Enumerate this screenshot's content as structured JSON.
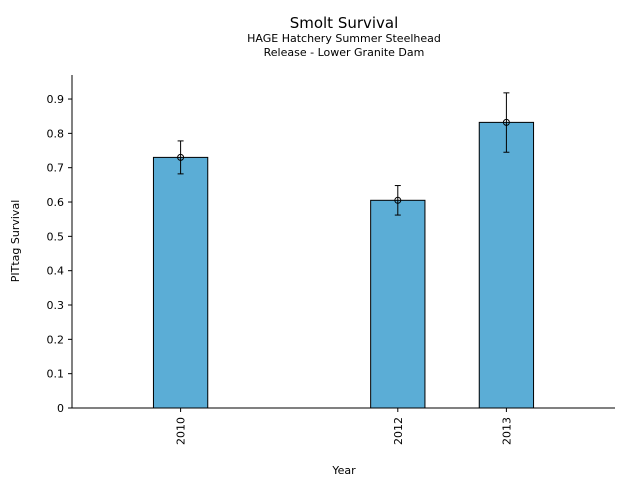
{
  "chart_data": {
    "type": "bar",
    "title": "Smolt Survival",
    "subtitle_lines": [
      "HAGE Hatchery Summer Steelhead",
      "Release - Lower Granite Dam"
    ],
    "xlabel": "Year",
    "ylabel": "PITtag Survival",
    "x": [
      2010,
      2012,
      2013
    ],
    "categories": [
      "2010",
      "2012",
      "2013"
    ],
    "values": [
      0.73,
      0.605,
      0.832
    ],
    "error_low": [
      0.682,
      0.562,
      0.745
    ],
    "error_high": [
      0.778,
      0.648,
      0.918
    ],
    "xlim": [
      2009.0,
      2014.0
    ],
    "ylim": [
      0,
      0.97
    ],
    "yticks": [
      0,
      0.1,
      0.2,
      0.3,
      0.4,
      0.5,
      0.6,
      0.7,
      0.8,
      0.9
    ],
    "ytick_labels": [
      "0",
      "0.1",
      "0.2",
      "0.3",
      "0.4",
      "0.5",
      "0.6",
      "0.7",
      "0.8",
      "0.9"
    ],
    "bar_color": "#5badd6",
    "grid": false,
    "legend": "none"
  }
}
